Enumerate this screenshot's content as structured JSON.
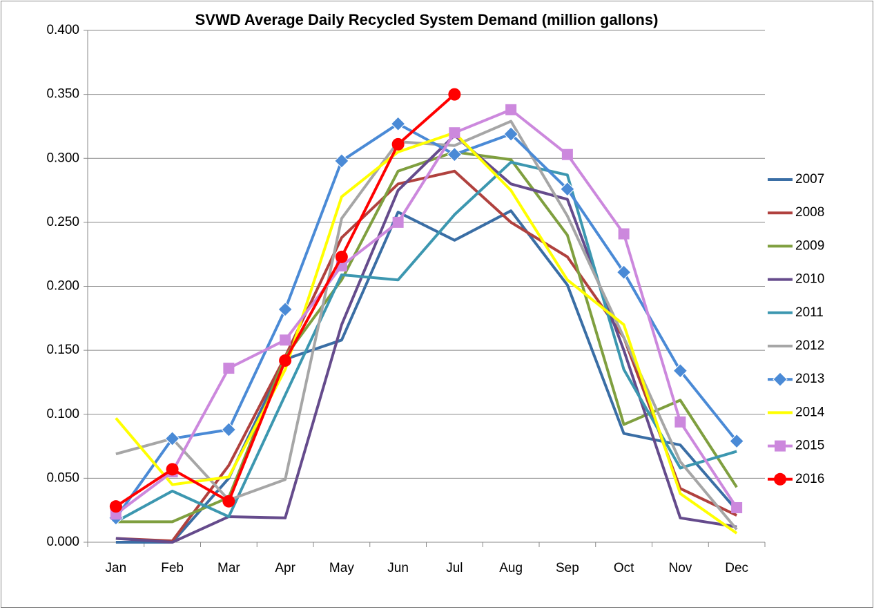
{
  "chart_data": {
    "type": "line",
    "title": "SVWD Average Daily Recycled System Demand (million gallons)",
    "categories": [
      "Jan",
      "Feb",
      "Mar",
      "Apr",
      "May",
      "Jun",
      "Jul",
      "Aug",
      "Sep",
      "Oct",
      "Nov",
      "Dec"
    ],
    "ylim": [
      0,
      0.4
    ],
    "yticks": [
      {
        "value": 0,
        "label": "0.000"
      },
      {
        "value": 0.05,
        "label": "0.050"
      },
      {
        "value": 0.1,
        "label": "0.100"
      },
      {
        "value": 0.15,
        "label": "0.150"
      },
      {
        "value": 0.2,
        "label": "0.200"
      },
      {
        "value": 0.25,
        "label": "0.250"
      },
      {
        "value": 0.3,
        "label": "0.300"
      },
      {
        "value": 0.35,
        "label": "0.350"
      },
      {
        "value": 0.4,
        "label": "0.400"
      }
    ],
    "grid": true,
    "legend": "right",
    "series": [
      {
        "name": "2007",
        "color": "#3a6ea5",
        "values": [
          0.0,
          0.0,
          0.05,
          0.143,
          0.158,
          0.258,
          0.236,
          0.259,
          0.201,
          0.085,
          0.076,
          0.025
        ]
      },
      {
        "name": "2008",
        "color": "#b0413e",
        "values": [
          0.003,
          0.001,
          0.06,
          0.145,
          0.238,
          0.28,
          0.29,
          0.25,
          0.223,
          0.16,
          0.042,
          0.021
        ]
      },
      {
        "name": "2009",
        "color": "#7f9f3f",
        "values": [
          0.016,
          0.016,
          0.035,
          0.145,
          0.205,
          0.29,
          0.305,
          0.299,
          0.24,
          0.092,
          0.111,
          0.043
        ]
      },
      {
        "name": "2010",
        "color": "#654b8c",
        "values": [
          0.003,
          0.0,
          0.02,
          0.019,
          0.17,
          0.275,
          0.318,
          0.28,
          0.268,
          0.15,
          0.019,
          0.012
        ]
      },
      {
        "name": "2011",
        "color": "#3c97b0",
        "values": [
          0.016,
          0.04,
          0.02,
          0.115,
          0.209,
          0.205,
          0.256,
          0.297,
          0.287,
          0.135,
          0.058,
          0.071
        ]
      },
      {
        "name": "2012",
        "color": "#a6a6a6",
        "values": [
          0.069,
          0.081,
          0.033,
          0.049,
          0.253,
          0.313,
          0.31,
          0.329,
          0.255,
          0.16,
          0.063,
          0.01
        ]
      },
      {
        "name": "2013",
        "color": "#4a8ad6",
        "marker": "diamond",
        "values": [
          0.019,
          0.081,
          0.088,
          0.182,
          0.298,
          0.327,
          0.303,
          0.319,
          0.276,
          0.211,
          0.134,
          0.079
        ]
      },
      {
        "name": "2014",
        "color": "#ffff00",
        "values": [
          0.097,
          0.045,
          0.051,
          0.135,
          0.27,
          0.305,
          0.32,
          0.275,
          0.205,
          0.17,
          0.038,
          0.007
        ]
      },
      {
        "name": "2015",
        "color": "#cc88dd",
        "marker": "square",
        "values": [
          0.022,
          0.055,
          0.136,
          0.158,
          0.216,
          0.25,
          0.32,
          0.338,
          0.303,
          0.241,
          0.094,
          0.027
        ]
      },
      {
        "name": "2016",
        "color": "#ff0000",
        "marker": "circle",
        "values": [
          0.028,
          0.057,
          0.032,
          0.142,
          0.223,
          0.311,
          0.35,
          null,
          null,
          null,
          null,
          null
        ]
      }
    ]
  }
}
